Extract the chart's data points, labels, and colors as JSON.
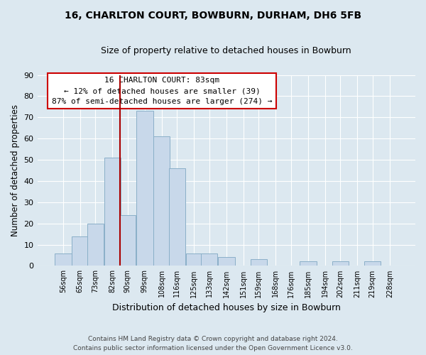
{
  "title": "16, CHARLTON COURT, BOWBURN, DURHAM, DH6 5FB",
  "subtitle": "Size of property relative to detached houses in Bowburn",
  "xlabel": "Distribution of detached houses by size in Bowburn",
  "ylabel": "Number of detached properties",
  "footer_line1": "Contains HM Land Registry data © Crown copyright and database right 2024.",
  "footer_line2": "Contains public sector information licensed under the Open Government Licence v3.0.",
  "bin_labels": [
    "56sqm",
    "65sqm",
    "73sqm",
    "82sqm",
    "90sqm",
    "99sqm",
    "108sqm",
    "116sqm",
    "125sqm",
    "133sqm",
    "142sqm",
    "151sqm",
    "159sqm",
    "168sqm",
    "176sqm",
    "185sqm",
    "194sqm",
    "202sqm",
    "211sqm",
    "219sqm",
    "228sqm"
  ],
  "bar_heights": [
    6,
    14,
    20,
    51,
    24,
    73,
    61,
    46,
    6,
    6,
    4,
    0,
    3,
    0,
    0,
    2,
    0,
    2,
    0,
    2,
    0
  ],
  "bar_color": "#c8d8ea",
  "bar_edge_color": "#8aafc8",
  "marker_x_label": "82sqm",
  "marker_label": "16 CHARLTON COURT: 83sqm",
  "annotation_line1": "← 12% of detached houses are smaller (39)",
  "annotation_line2": "87% of semi-detached houses are larger (274) →",
  "marker_color": "#aa0000",
  "ylim": [
    0,
    90
  ],
  "yticks": [
    0,
    10,
    20,
    30,
    40,
    50,
    60,
    70,
    80,
    90
  ],
  "box_color": "white",
  "box_edge_color": "#cc0000",
  "background_color": "#dce8f0",
  "grid_color": "white"
}
